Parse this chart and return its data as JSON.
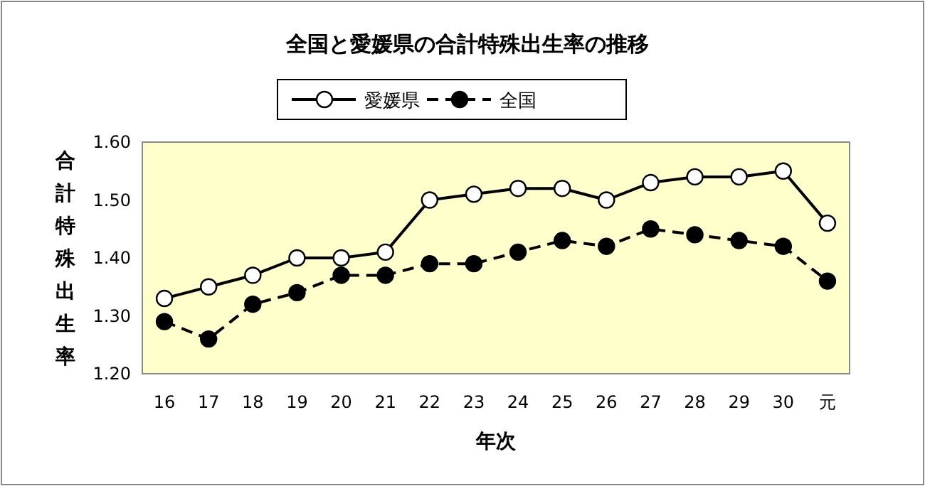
{
  "chart_data": {
    "type": "line",
    "title": "全国と愛媛県の合計特殊出生率の推移",
    "xlabel": "年次",
    "ylabel": "合計特殊出生率",
    "categories": [
      "16",
      "17",
      "18",
      "19",
      "20",
      "21",
      "22",
      "23",
      "24",
      "25",
      "26",
      "27",
      "28",
      "29",
      "30",
      "元"
    ],
    "series": [
      {
        "name": "愛媛県",
        "color": "#000000",
        "line_style": "solid",
        "values": [
          1.33,
          1.35,
          1.37,
          1.4,
          1.4,
          1.41,
          1.5,
          1.51,
          1.52,
          1.52,
          1.5,
          1.53,
          1.54,
          1.54,
          1.55,
          1.46
        ]
      },
      {
        "name": "全国",
        "color": "#000000",
        "line_style": "dashed",
        "values": [
          1.29,
          1.26,
          1.32,
          1.34,
          1.37,
          1.37,
          1.39,
          1.39,
          1.41,
          1.43,
          1.42,
          1.45,
          1.44,
          1.43,
          1.42,
          1.36
        ]
      }
    ],
    "ylim": [
      1.2,
      1.6
    ],
    "yticks": [
      {
        "value": 1.2,
        "label": "1.20"
      },
      {
        "value": 1.3,
        "label": "1.30"
      },
      {
        "value": 1.4,
        "label": "1.40"
      },
      {
        "value": 1.5,
        "label": "1.50"
      },
      {
        "value": 1.6,
        "label": "1.60"
      }
    ],
    "marker": "circle",
    "legend": "top",
    "grid": false
  }
}
